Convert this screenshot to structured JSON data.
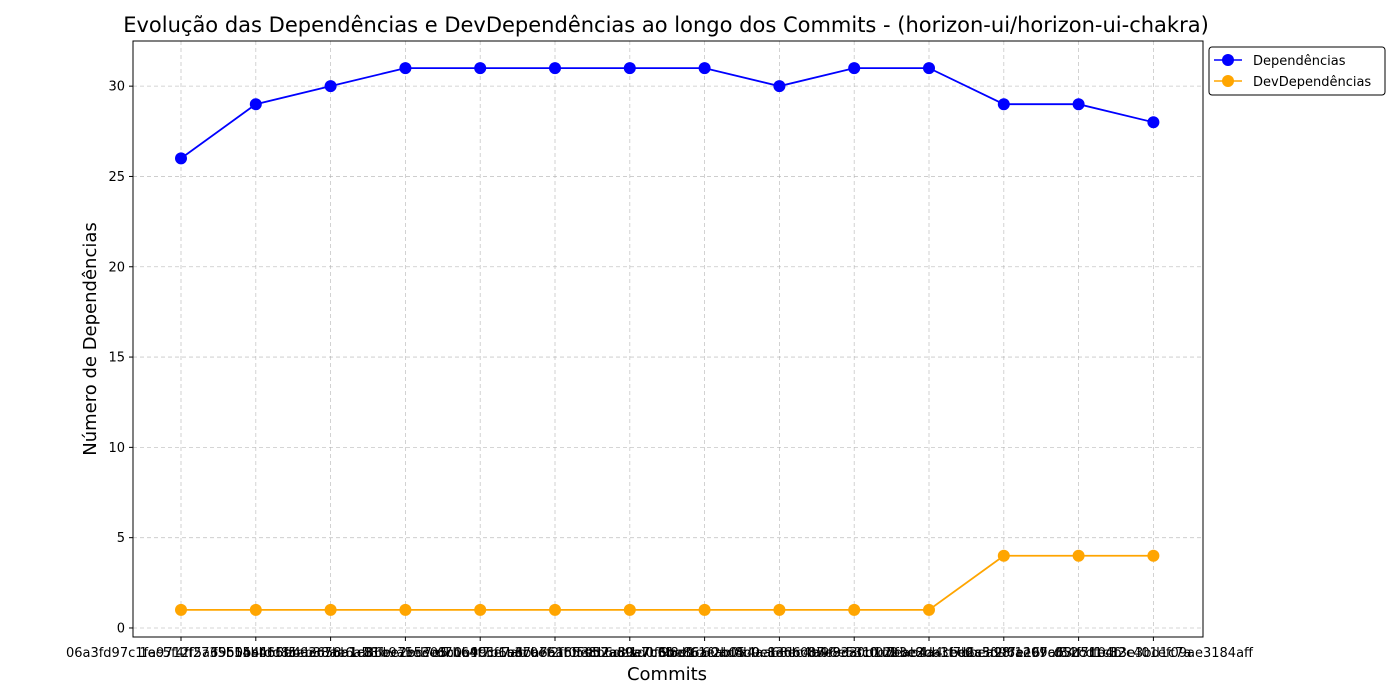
{
  "chart_data": {
    "type": "line",
    "title": "Evolução das Dependências e DevDependências ao longo dos Commits - (horizon-ui/horizon-ui-chakra)",
    "xlabel": "Commits",
    "ylabel": "Número de Dependências",
    "ylim": [
      -0.5,
      32.5
    ],
    "yticks": [
      0,
      5,
      10,
      15,
      20,
      25,
      30
    ],
    "grid": true,
    "legend_position": "top-right",
    "categories": [
      "06a3fd97c1fa9712f5a6950b4fdd8c",
      "1ec5f4ff2735b55ab66bb03c7bb1c8",
      "f5b14b4b5f5eb38ae6a58fbe2bd7e5",
      "e4ae658a1a86ec7e5e03c1b4c5e7ab",
      "81b9a5e3e6b0e99cf6b6ba6a1f0f3c",
      "d7b64f7b1ae7b76a6f59d2a80e7c6b",
      "3c0ef2fb5e8b6de1d0f6be86af2b05",
      "c57ad9a7b3f8e1c60ad8b9e13d6c87",
      "9bdf61eab0a4aa68ec4b4f83a0b1d2",
      "4d0c8e6b0b5e9d3f1f02bbe2da3ee0",
      "a96e53c0ddeab4a4cbd6c3f2f7e16f",
      "7f3e8bb1f7bbea98f1297a63d71e4b",
      "2a5d96ae09cf84f5ff0df3e3bd1c7a",
      "d52cd1c32c401ef09ae3184aff"
    ],
    "series": [
      {
        "name": "Dependências",
        "color": "#0000ff",
        "values": [
          26,
          29,
          30,
          31,
          31,
          31,
          31,
          31,
          30,
          31,
          31,
          29,
          29,
          28
        ]
      },
      {
        "name": "DevDependências",
        "color": "#ffa500",
        "values": [
          1,
          1,
          1,
          1,
          1,
          1,
          1,
          1,
          1,
          1,
          1,
          4,
          4,
          4
        ]
      }
    ]
  }
}
